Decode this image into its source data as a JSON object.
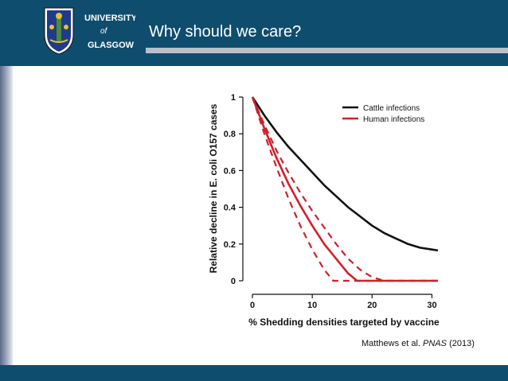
{
  "slide": {
    "title": "Why should we care?",
    "logo": {
      "line1": "UNIVERSITY",
      "line2": "of",
      "line3": "GLASGOW"
    },
    "citation": {
      "authors": "Matthews et al.",
      "journal": "PNAS",
      "year": "(2013)"
    },
    "colors": {
      "header": "#0f4d6f",
      "cattle": "#111111",
      "human": "#d0202a"
    }
  },
  "chart_data": {
    "type": "line",
    "title": "",
    "xlabel": "% Shedding densities targeted by vaccine",
    "ylabel": "Relative decline in E. coli O157 cases",
    "xlim": [
      0,
      31
    ],
    "ylim": [
      -0.02,
      1.02
    ],
    "xticks": [
      0,
      10,
      20,
      30
    ],
    "yticks": [
      0,
      0.2,
      0.4,
      0.6,
      0.8,
      1
    ],
    "ytick_labels": [
      "0",
      "0.2",
      "0.4",
      "0.6",
      "0.8",
      "1"
    ],
    "grid": false,
    "legend": {
      "position": "top-right",
      "entries": [
        "Cattle infections",
        "Human infections"
      ]
    },
    "series": [
      {
        "name": "Cattle infections",
        "color": "#111111",
        "style": "solid",
        "x": [
          0,
          2,
          4,
          6,
          8,
          10,
          12,
          14,
          16,
          18,
          20,
          22,
          24,
          26,
          28,
          30,
          31
        ],
        "y": [
          1.0,
          0.9,
          0.81,
          0.73,
          0.66,
          0.59,
          0.52,
          0.46,
          0.4,
          0.35,
          0.3,
          0.26,
          0.23,
          0.2,
          0.18,
          0.17,
          0.165
        ]
      },
      {
        "name": "Human infections",
        "color": "#d0202a",
        "style": "solid",
        "x": [
          0,
          2,
          4,
          6,
          8,
          10,
          12,
          14,
          16,
          17.5,
          20,
          25,
          31
        ],
        "y": [
          1.0,
          0.83,
          0.67,
          0.53,
          0.41,
          0.3,
          0.2,
          0.12,
          0.04,
          0.0,
          0.0,
          0.0,
          0.0
        ]
      },
      {
        "name": "",
        "color": "#d0202a",
        "style": "dashed",
        "x": [
          0,
          2,
          4,
          6,
          8,
          10,
          12,
          14,
          16,
          18,
          20,
          22,
          25,
          31
        ],
        "y": [
          1.0,
          0.85,
          0.71,
          0.59,
          0.48,
          0.38,
          0.29,
          0.2,
          0.12,
          0.06,
          0.02,
          0.0,
          0.0,
          0.0
        ]
      },
      {
        "name": "",
        "color": "#d0202a",
        "style": "dashed",
        "x": [
          0,
          2,
          4,
          6,
          8,
          10,
          12,
          13.5,
          15,
          20,
          31
        ],
        "y": [
          1.0,
          0.8,
          0.62,
          0.45,
          0.3,
          0.17,
          0.06,
          0.0,
          0.0,
          0.0,
          0.0
        ]
      }
    ]
  }
}
